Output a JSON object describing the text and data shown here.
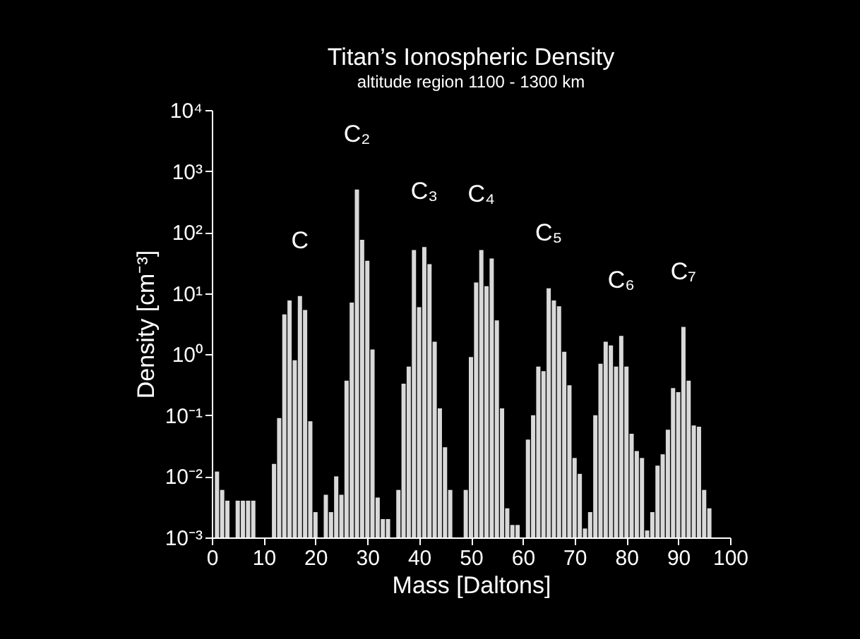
{
  "chart_data": {
    "type": "bar",
    "title": "Titan’s Ionospheric Density",
    "subtitle": "altitude region 1100 - 1300 km",
    "xlabel": "Mass [Daltons]",
    "ylabel": "Density [cm⁻³]",
    "x": [
      1,
      2,
      3,
      5,
      6,
      7,
      8,
      12,
      13,
      14,
      15,
      16,
      17,
      18,
      19,
      20,
      22,
      23,
      24,
      25,
      26,
      27,
      28,
      29,
      30,
      31,
      32,
      33,
      34,
      36,
      37,
      38,
      39,
      40,
      41,
      42,
      43,
      44,
      45,
      46,
      49,
      50,
      51,
      52,
      53,
      54,
      55,
      56,
      57,
      58,
      59,
      61,
      62,
      63,
      64,
      65,
      66,
      67,
      68,
      69,
      70,
      71,
      72,
      73,
      74,
      75,
      76,
      77,
      78,
      79,
      80,
      81,
      82,
      83,
      84,
      85,
      86,
      87,
      88,
      89,
      90,
      91,
      92,
      93,
      94,
      95,
      96
    ],
    "values": [
      0.012,
      0.006,
      0.004,
      0.004,
      0.004,
      0.004,
      0.004,
      0.016,
      0.09,
      4.5,
      7.6,
      0.8,
      9,
      5.3,
      0.08,
      0.0026,
      0.005,
      0.0026,
      0.01,
      0.005,
      0.37,
      7,
      500,
      75,
      34,
      1.2,
      0.0045,
      0.002,
      0.002,
      0.006,
      0.33,
      0.63,
      51,
      5.9,
      57,
      30,
      1.6,
      0.13,
      0.03,
      0.006,
      0.006,
      0.9,
      15,
      51,
      13,
      37,
      3.6,
      0.13,
      0.003,
      0.0016,
      0.0016,
      0.04,
      0.1,
      0.63,
      0.53,
      12,
      7.6,
      6.1,
      1.1,
      0.31,
      0.02,
      0.011,
      0.0014,
      0.0026,
      0.1,
      0.7,
      1.6,
      1.4,
      0.63,
      2,
      0.63,
      0.05,
      0.026,
      0.02,
      0.0013,
      0.0026,
      0.015,
      0.023,
      0.058,
      0.28,
      0.24,
      2.8,
      0.37,
      0.068,
      0.065,
      0.006,
      0.003
    ],
    "color": "#d9d9d9",
    "xlim": [
      0,
      100
    ],
    "xticks": [
      0,
      10,
      20,
      30,
      40,
      50,
      60,
      70,
      80,
      90,
      100
    ],
    "ylim": [
      0.001,
      10000
    ],
    "log": true,
    "yticks": [
      {
        "value": 0.001,
        "label": "10⁻³"
      },
      {
        "value": 0.01,
        "label": "10⁻²"
      },
      {
        "value": 0.1,
        "label": "10⁻¹"
      },
      {
        "value": 1,
        "label": "10⁰"
      },
      {
        "value": 10,
        "label": "10¹"
      },
      {
        "value": 100,
        "label": "10²"
      },
      {
        "value": 1000,
        "label": "10³"
      },
      {
        "value": 10000,
        "label": "10⁴"
      }
    ],
    "grid": false,
    "annotations": [
      {
        "text": "C",
        "x": 17,
        "y": 9
      },
      {
        "text": "C₂",
        "x": 28,
        "y": 500
      },
      {
        "text": "C₃",
        "x": 41,
        "y": 57
      },
      {
        "text": "C₄",
        "x": 52,
        "y": 51
      },
      {
        "text": "C₅",
        "x": 65,
        "y": 12
      },
      {
        "text": "C₆",
        "x": 79,
        "y": 2
      },
      {
        "text": "C₇",
        "x": 91,
        "y": 2.8
      }
    ]
  }
}
